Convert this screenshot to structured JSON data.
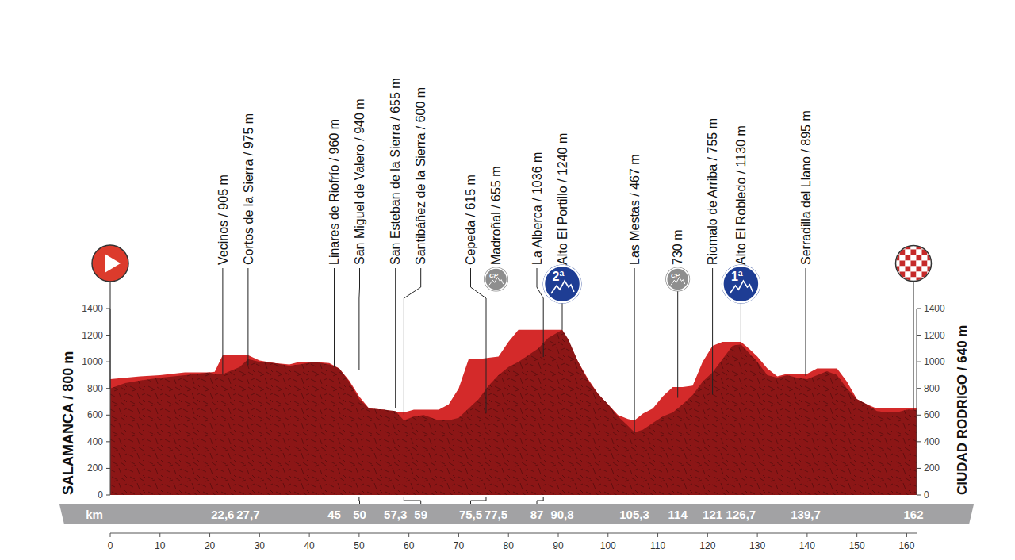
{
  "chart_data": {
    "type": "area",
    "x_label": "km",
    "x": [
      0,
      3,
      6,
      10,
      15,
      20,
      21,
      22.6,
      24,
      26,
      27.7,
      30,
      33,
      36,
      38,
      41,
      44,
      46,
      48,
      50,
      52,
      55,
      57.3,
      59,
      61,
      63,
      66,
      68,
      70,
      72,
      74,
      76,
      78,
      80,
      82,
      84,
      86,
      88,
      90.8,
      92,
      94,
      96,
      98,
      100,
      102,
      104,
      105.3,
      107,
      109,
      111,
      113,
      115,
      117,
      119,
      121,
      123,
      125,
      126.7,
      128,
      130,
      132,
      134,
      136,
      138,
      140,
      142,
      144,
      146,
      148,
      150,
      152,
      154,
      156,
      158,
      160,
      162
    ],
    "series": [
      {
        "color": "#d42a2a",
        "values": [
          870,
          880,
          890,
          900,
          920,
          920,
          925,
          1050,
          1050,
          1050,
          1050,
          1010,
          990,
          980,
          1000,
          1000,
          990,
          950,
          860,
          740,
          650,
          640,
          620,
          620,
          640,
          640,
          640,
          680,
          800,
          1020,
          1020,
          1030,
          1040,
          1150,
          1240,
          1240,
          1240,
          1240,
          1240,
          1150,
          1000,
          870,
          760,
          680,
          600,
          570,
          560,
          610,
          650,
          740,
          810,
          810,
          820,
          1000,
          1120,
          1150,
          1150,
          1150,
          1110,
          1040,
          950,
          890,
          910,
          910,
          910,
          950,
          950,
          950,
          850,
          720,
          680,
          650,
          650,
          650,
          650,
          650
        ]
      },
      {
        "color": "#8c1616",
        "values": [
          800,
          840,
          860,
          880,
          900,
          920,
          905,
          905,
          930,
          960,
          1020,
          1000,
          990,
          970,
          980,
          1000,
          980,
          950,
          850,
          720,
          650,
          640,
          630,
          560,
          590,
          600,
          560,
          560,
          580,
          650,
          720,
          820,
          900,
          960,
          1000,
          1050,
          1100,
          1180,
          1240,
          1170,
          1000,
          860,
          760,
          680,
          590,
          520,
          470,
          490,
          540,
          590,
          620,
          680,
          750,
          850,
          920,
          1020,
          1120,
          1130,
          1080,
          1000,
          900,
          880,
          900,
          880,
          870,
          900,
          930,
          900,
          800,
          720,
          680,
          630,
          620,
          620,
          640,
          640
        ]
      }
    ],
    "xlim": [
      0,
      162
    ],
    "xticks": [
      0,
      10,
      20,
      30,
      40,
      50,
      60,
      70,
      80,
      90,
      100,
      110,
      120,
      130,
      140,
      150,
      160
    ],
    "ylim": [
      0,
      1400
    ],
    "yticks": [
      0,
      200,
      400,
      600,
      800,
      1000,
      1200,
      1400
    ],
    "grid": false,
    "start": {
      "label": "SALAMANCA / 800 m",
      "km": 0,
      "elevation": 800
    },
    "finish": {
      "label": "CIUDAD RODRIGO / 640 m",
      "km": 162,
      "elevation": 640
    },
    "annotations": [
      {
        "label": "Vecinos / 905 m",
        "km": {
          "value": 22.6,
          "label": "22,6"
        },
        "elevation": 905
      },
      {
        "label": "Cortos de la Sierra / 975 m",
        "km": {
          "value": 27.7,
          "label": "27,7"
        },
        "elevation": 975
      },
      {
        "label": "Linares de Riofrío / 960 m",
        "km": 45,
        "elevation": 960
      },
      {
        "label": "San Miguel de Valero / 940 m",
        "km": 50,
        "elevation": 940
      },
      {
        "label": "San Esteban de la Sierra / 655 m",
        "km": {
          "value": 57.3,
          "label": "57,3"
        },
        "elevation": 655
      },
      {
        "label": "Santibáñez de la Sierra / 600 m",
        "km": 59,
        "elevation": 600
      },
      {
        "label": "Cepeda / 615 m",
        "km": {
          "value": 75.5,
          "label": "75,5"
        },
        "elevation": 615
      },
      {
        "label": "Madroñal / 655 m",
        "km": {
          "value": 77.5,
          "label": "77,5"
        },
        "elevation": 655,
        "badge": "CP",
        "color": "#8e8e8e"
      },
      {
        "label": "La Alberca / 1036 m",
        "km": 87,
        "elevation": 1036
      },
      {
        "label": "Alto El Portillo / 1240 m",
        "km": {
          "value": 90.8,
          "label": "90,8"
        },
        "elevation": 1240,
        "badge": "2ª",
        "color": "#1e3d94"
      },
      {
        "label": "Las Mestas / 467 m",
        "km": {
          "value": 105.3,
          "label": "105,3"
        },
        "elevation": 467
      },
      {
        "label": "730 m",
        "km": 114,
        "elevation": 730,
        "badge": "CP",
        "color": "#8e8e8e"
      },
      {
        "label": "Riomalo de Arriba / 755 m",
        "km": 121,
        "elevation": 755
      },
      {
        "label": "Alto El Robledo / 1130 m",
        "km": {
          "value": 126.7,
          "label": "126,7"
        },
        "elevation": 1130,
        "badge": "1ª",
        "color": "#1e3d94"
      },
      {
        "label": "Serradilla del Llano / 895 m",
        "km": {
          "value": 139.7,
          "label": "139,7"
        },
        "elevation": 895
      }
    ]
  }
}
